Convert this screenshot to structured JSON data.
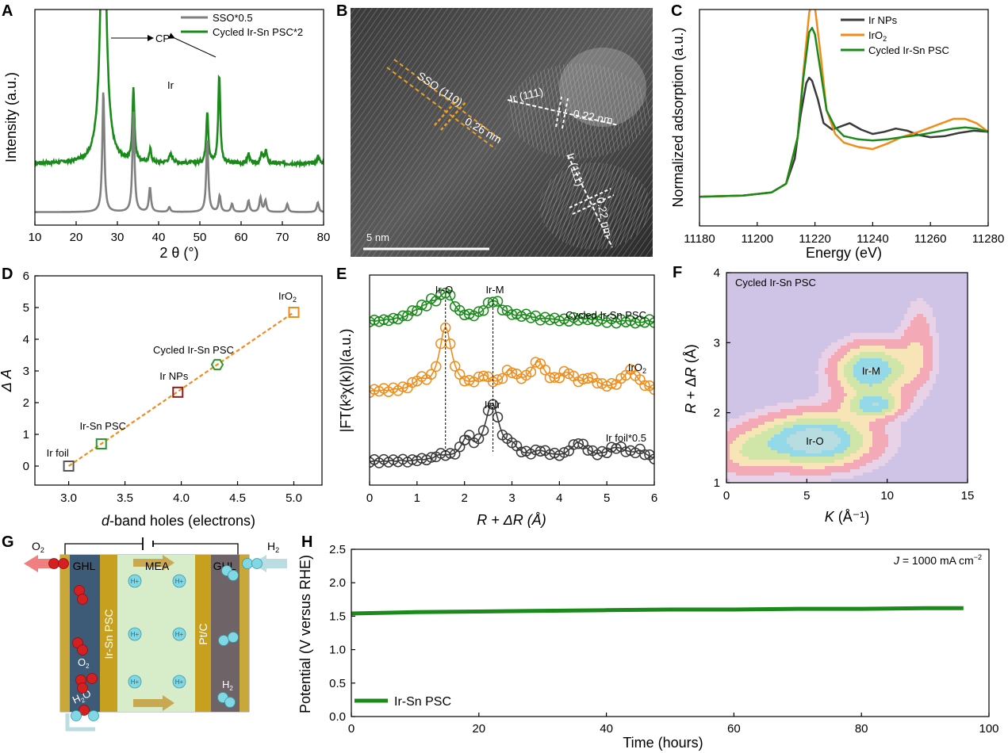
{
  "chart_data": [
    {
      "panel": "A",
      "type": "line",
      "xlabel": "2 θ (°)",
      "ylabel": "Intensity (a.u.)",
      "xlim": [
        10,
        80
      ],
      "xticks": [
        10,
        20,
        30,
        40,
        50,
        60,
        70,
        80
      ],
      "legend_position": "top-right",
      "annotations": [
        "CP",
        "Ir"
      ],
      "series": [
        {
          "name": "Cycled Ir-Sn PSC*2",
          "color": "#1a8a1a",
          "baseline": 0.3,
          "noise": 0.02,
          "peaks": [
            [
              26.6,
              1.8,
              0.8
            ],
            [
              33.9,
              0.45,
              0.3
            ],
            [
              38.0,
              0.08,
              0.3
            ],
            [
              43.0,
              0.05,
              0.6
            ],
            [
              51.8,
              0.32,
              0.3
            ],
            [
              54.7,
              0.55,
              0.3
            ],
            [
              61.8,
              0.06,
              0.3
            ],
            [
              65.0,
              0.06,
              0.3
            ],
            [
              66.0,
              0.08,
              0.3
            ],
            [
              78.7,
              0.05,
              0.3
            ]
          ]
        },
        {
          "name": "SSO*0.5",
          "color": "#808080",
          "baseline": 0.0,
          "noise": 0.0,
          "peaks": [
            [
              26.6,
              0.75,
              0.3
            ],
            [
              33.9,
              0.62,
              0.3
            ],
            [
              37.9,
              0.15,
              0.3
            ],
            [
              42.6,
              0.03,
              0.3
            ],
            [
              51.8,
              0.45,
              0.3
            ],
            [
              54.8,
              0.1,
              0.3
            ],
            [
              57.8,
              0.05,
              0.3
            ],
            [
              61.8,
              0.07,
              0.3
            ],
            [
              64.7,
              0.09,
              0.3
            ],
            [
              65.9,
              0.07,
              0.3
            ],
            [
              71.2,
              0.05,
              0.3
            ],
            [
              78.6,
              0.06,
              0.3
            ]
          ]
        }
      ]
    },
    {
      "panel": "B",
      "type": "image",
      "annotations": [
        "SSO (110)",
        "0.26 nm",
        "Ir (111)",
        "0.22 nm",
        "Ir (111)",
        "0.22 nm"
      ],
      "scale_bar": "5 nm"
    },
    {
      "panel": "C",
      "type": "line",
      "xlabel": "Energy (eV)",
      "ylabel": "Normalized adsorption (a.u.)",
      "xlim": [
        11180,
        11280
      ],
      "xticks": [
        11180,
        11200,
        11220,
        11240,
        11260,
        11280
      ],
      "legend_position": "top-right",
      "series": [
        {
          "name": "Ir NPs",
          "color": "#3a3a3a",
          "x": [
            11180,
            11195,
            11205,
            11210,
            11213,
            11215,
            11217,
            11218,
            11219,
            11221,
            11223,
            11226,
            11230,
            11232,
            11236,
            11240,
            11244,
            11248,
            11252,
            11256,
            11260,
            11265,
            11270,
            11275,
            11280
          ],
          "y": [
            0.0,
            0.01,
            0.04,
            0.12,
            0.35,
            0.75,
            1.05,
            1.1,
            1.07,
            0.9,
            0.68,
            0.62,
            0.66,
            0.68,
            0.62,
            0.58,
            0.6,
            0.63,
            0.61,
            0.57,
            0.55,
            0.56,
            0.59,
            0.61,
            0.6
          ]
        },
        {
          "name": "IrO",
          "name_sub": "2",
          "color": "#f08c1a",
          "x": [
            11180,
            11195,
            11205,
            11210,
            11214,
            11216,
            11218,
            11219,
            11220,
            11222,
            11224,
            11227,
            11230,
            11235,
            11240,
            11245,
            11250,
            11256,
            11262,
            11268,
            11272,
            11276,
            11280
          ],
          "y": [
            0.0,
            0.01,
            0.04,
            0.12,
            0.55,
            1.15,
            1.7,
            1.8,
            1.75,
            1.3,
            0.8,
            0.58,
            0.5,
            0.46,
            0.44,
            0.49,
            0.55,
            0.6,
            0.66,
            0.72,
            0.72,
            0.68,
            0.6
          ]
        },
        {
          "name": "Cycled Ir-Sn PSC",
          "color": "#1a8a1a",
          "x": [
            11180,
            11195,
            11205,
            11210,
            11214,
            11216,
            11218,
            11219,
            11220,
            11222,
            11224,
            11227,
            11230,
            11235,
            11240,
            11245,
            11250,
            11256,
            11262,
            11268,
            11272,
            11276,
            11280
          ],
          "y": [
            0.0,
            0.01,
            0.04,
            0.12,
            0.55,
            1.1,
            1.52,
            1.56,
            1.5,
            1.15,
            0.8,
            0.64,
            0.56,
            0.53,
            0.52,
            0.53,
            0.55,
            0.57,
            0.6,
            0.63,
            0.64,
            0.63,
            0.6
          ]
        }
      ]
    },
    {
      "panel": "D",
      "type": "scatter",
      "xlabel": "d-band holes (electrons)",
      "ylabel": "Δ A",
      "xlim": [
        2.7,
        5.25
      ],
      "ylim": [
        -0.6,
        6
      ],
      "xticks": [
        3.0,
        3.5,
        4.0,
        4.5,
        5.0
      ],
      "yticks": [
        0,
        1,
        2,
        3,
        4,
        5,
        6
      ],
      "points": [
        {
          "label": "Ir foil",
          "x": 3.0,
          "y": 0.0,
          "color": "#555555",
          "marker": "square"
        },
        {
          "label": "Ir-Sn PSC",
          "x": 3.29,
          "y": 0.7,
          "color": "#2a9a2a",
          "marker": "square"
        },
        {
          "label": "Ir NPs",
          "x": 3.97,
          "y": 2.33,
          "color": "#8b1a1a",
          "marker": "square"
        },
        {
          "label": "Cycled Ir-Sn PSC",
          "x": 4.32,
          "y": 3.2,
          "color": "#2a9a2a",
          "marker": "hexagon"
        },
        {
          "label": "IrO",
          "label_sub": "2",
          "x": 5.0,
          "y": 4.85,
          "color": "#f08c1a",
          "marker": "square"
        }
      ],
      "fit": {
        "x": [
          3.0,
          5.0
        ],
        "y": [
          0.0,
          4.85
        ],
        "color": "#f08c1a"
      }
    },
    {
      "panel": "E",
      "type": "line",
      "xlabel": "R + ΔR (Å)",
      "ylabel": "|FT(k³χ(k))|(a.u.)",
      "xlim": [
        0,
        6
      ],
      "xticks": [
        0,
        1,
        2,
        3,
        4,
        5,
        6
      ],
      "annotations": [
        "Ir-O",
        "Ir-M",
        "Ir-Ir"
      ],
      "marker_lines": [
        1.6,
        2.6
      ],
      "series": [
        {
          "name": "Cycled Ir-Sn PSC",
          "color": "#1a8a1a",
          "offset": 2.1,
          "noise": 0.03,
          "peaks": [
            [
              1.0,
              0.1,
              0.22
            ],
            [
              1.3,
              0.18,
              0.2
            ],
            [
              1.62,
              0.38,
              0.18
            ],
            [
              2.62,
              0.3,
              0.22
            ],
            [
              3.3,
              0.06,
              0.25
            ],
            [
              4.5,
              0.04,
              0.3
            ]
          ]
        },
        {
          "name": "IrO",
          "name_sub": "2",
          "color": "#f08c1a",
          "offset": 1.05,
          "noise": 0.02,
          "peaks": [
            [
              1.6,
              0.95,
              0.16
            ],
            [
              1.05,
              0.12,
              0.15
            ],
            [
              2.4,
              0.18,
              0.15
            ],
            [
              2.95,
              0.25,
              0.18
            ],
            [
              3.55,
              0.4,
              0.2
            ],
            [
              4.15,
              0.22,
              0.18
            ],
            [
              4.65,
              0.16,
              0.18
            ],
            [
              5.5,
              0.3,
              0.2
            ]
          ]
        },
        {
          "name": "Ir foil*0.5",
          "color": "#3a3a3a",
          "offset": 0.0,
          "noise": 0.02,
          "peaks": [
            [
              1.5,
              0.06,
              0.18
            ],
            [
              2.05,
              0.3,
              0.13
            ],
            [
              2.58,
              0.85,
              0.18
            ],
            [
              3.0,
              0.15,
              0.15
            ],
            [
              3.6,
              0.12,
              0.2
            ],
            [
              4.4,
              0.25,
              0.22
            ],
            [
              5.2,
              0.18,
              0.25
            ],
            [
              5.7,
              0.12,
              0.2
            ]
          ]
        }
      ]
    },
    {
      "panel": "F",
      "type": "heatmap",
      "title": "Cycled Ir-Sn PSC",
      "xlabel": "K (Å⁻¹)",
      "ylabel": "R + ΔR (Å)",
      "xlim": [
        0,
        15
      ],
      "ylim": [
        1,
        4
      ],
      "xticks": [
        0,
        5,
        10,
        15
      ],
      "yticks": [
        1,
        2,
        3,
        4
      ],
      "features": [
        {
          "label": "Ir-O",
          "k": 5.5,
          "r": 1.6,
          "amp": 1.0,
          "sk": 2.6,
          "sr": 0.28
        },
        {
          "label": "Ir-M",
          "k": 9.0,
          "r": 2.6,
          "amp": 0.85,
          "sk": 1.7,
          "sr": 0.28
        },
        {
          "label": "",
          "k": 9.3,
          "r": 2.1,
          "amp": 0.6,
          "sk": 1.2,
          "sr": 0.12
        },
        {
          "label": "",
          "k": 12.0,
          "r": 3.0,
          "amp": 0.32,
          "sk": 0.8,
          "sr": 0.45
        },
        {
          "label": "",
          "k": 1.0,
          "r": 1.4,
          "amp": 0.35,
          "sk": 1.4,
          "sr": 0.25
        }
      ],
      "colors": [
        "#cfc4e6",
        "#e8d2e8",
        "#f4a9b6",
        "#f7e5b8",
        "#cfe6a8",
        "#93d9e8",
        "#b8dde0"
      ]
    },
    {
      "panel": "G",
      "type": "diagram",
      "labels": [
        "O",
        "GHL",
        "MEA",
        "GHL",
        "H",
        "Ir-Sn PSC",
        "Pt/C",
        "O",
        "H",
        "H",
        "O",
        "H"
      ],
      "subs": [
        "2",
        "2",
        "2",
        "2",
        "2",
        "+"
      ]
    },
    {
      "panel": "H",
      "type": "line",
      "xlabel": "Time (hours)",
      "ylabel": "Potential (V versus RHE)",
      "xlim": [
        0,
        100
      ],
      "ylim": [
        0,
        2.5
      ],
      "xticks": [
        0,
        20,
        40,
        60,
        80,
        100
      ],
      "yticks": [
        0.0,
        0.5,
        1.0,
        1.5,
        2.0,
        2.5
      ],
      "annotation": {
        "prefix": "J",
        "text": " = 1000 mA cm",
        "sup": "−2"
      },
      "legend_position": "bottom-left",
      "series": [
        {
          "name": "Ir-Sn PSC",
          "color": "#1a8a1a",
          "x": [
            0,
            10,
            20,
            30,
            40,
            50,
            60,
            70,
            80,
            90,
            96
          ],
          "y": [
            1.54,
            1.56,
            1.57,
            1.58,
            1.59,
            1.6,
            1.6,
            1.61,
            1.61,
            1.62,
            1.62
          ]
        }
      ]
    }
  ]
}
